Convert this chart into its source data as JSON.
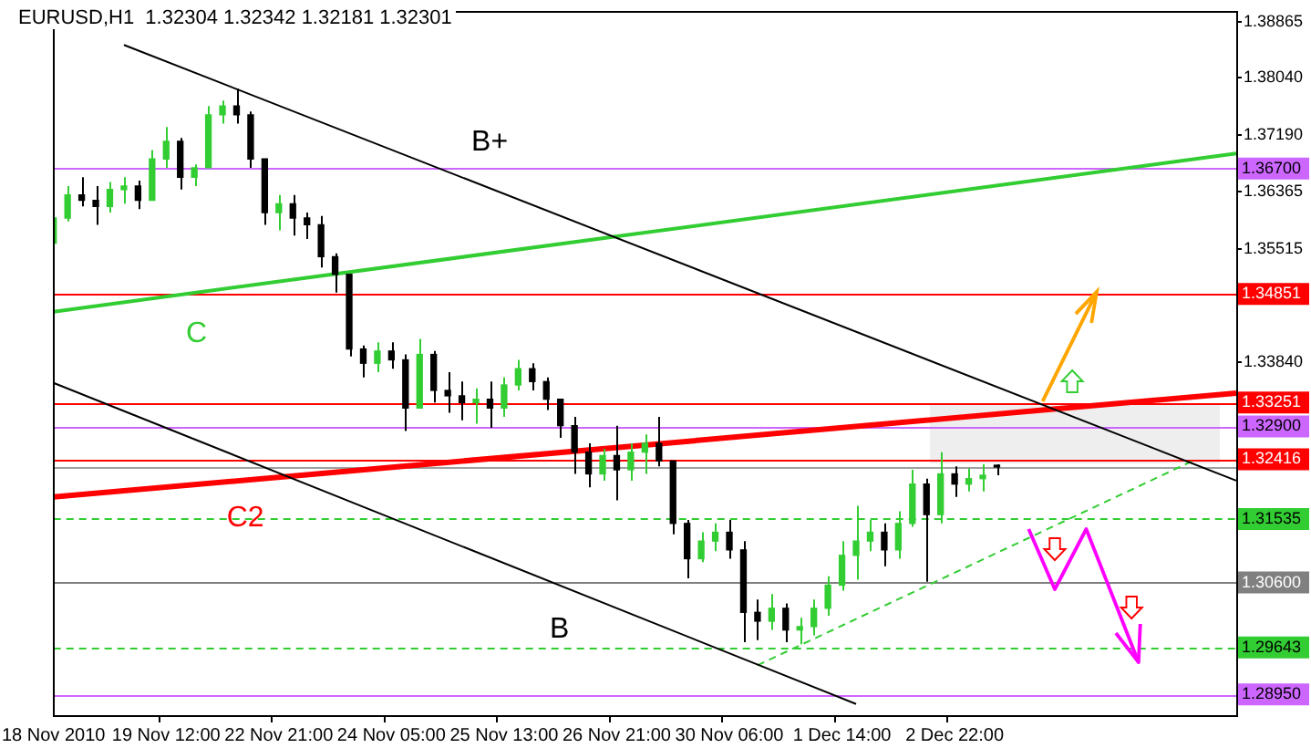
{
  "chart_data": {
    "type": "candlestick",
    "title": "EURUSD,H1  1.32304 1.32342 1.32181 1.32301",
    "legend": false,
    "grid": false,
    "marker": "none",
    "categories": [
      "18 Nov 2010",
      null,
      null,
      null,
      null,
      null,
      null,
      null,
      "19 Nov 12:00",
      null,
      null,
      null,
      null,
      null,
      null,
      null,
      "22 Nov 21:00",
      null,
      null,
      null,
      null,
      null,
      null,
      null,
      "24 Nov 05:00",
      null,
      null,
      null,
      null,
      null,
      null,
      null,
      "25 Nov 13:00",
      null,
      null,
      null,
      null,
      null,
      null,
      null,
      "26 Nov 21:00",
      null,
      null,
      null,
      null,
      null,
      null,
      null,
      "30 Nov 06:00",
      null,
      null,
      null,
      null,
      null,
      null,
      null,
      "1 Dec 14:00",
      null,
      null,
      null,
      null,
      null,
      null,
      null,
      "2 Dec 22:00",
      null,
      null,
      null,
      null,
      null,
      null,
      null,
      null,
      null,
      null,
      null,
      null,
      null,
      null,
      null,
      null,
      null,
      null,
      null,
      null
    ],
    "ohlc": [
      [
        1.356,
        1.3605,
        1.3553,
        1.3597
      ],
      [
        1.3597,
        1.3644,
        1.3592,
        1.3631
      ],
      [
        1.3631,
        1.3657,
        1.3614,
        1.3623
      ],
      [
        1.3623,
        1.3644,
        1.3587,
        1.3614
      ],
      [
        1.3614,
        1.365,
        1.3605,
        1.3639
      ],
      [
        1.3639,
        1.3657,
        1.3618,
        1.3644
      ],
      [
        1.3644,
        1.3652,
        1.361,
        1.3623
      ],
      [
        1.3623,
        1.3697,
        1.3623,
        1.3684
      ],
      [
        1.3684,
        1.3731,
        1.3671,
        1.371
      ],
      [
        1.371,
        1.3715,
        1.3639,
        1.3657
      ],
      [
        1.3657,
        1.3676,
        1.3644,
        1.3671
      ],
      [
        1.3671,
        1.3762,
        1.3671,
        1.3749
      ],
      [
        1.3749,
        1.377,
        1.3736,
        1.3762
      ],
      [
        1.3762,
        1.3788,
        1.3736,
        1.3749
      ],
      [
        1.3749,
        1.3754,
        1.3671,
        1.3684
      ],
      [
        1.3684,
        1.3684,
        1.3587,
        1.3605
      ],
      [
        1.3605,
        1.3631,
        1.3579,
        1.3618
      ],
      [
        1.3618,
        1.3631,
        1.3571,
        1.3597
      ],
      [
        1.3597,
        1.3605,
        1.3566,
        1.3587
      ],
      [
        1.3587,
        1.36,
        1.3524,
        1.354
      ],
      [
        1.354,
        1.3545,
        1.3487,
        1.3514
      ],
      [
        1.3514,
        1.3514,
        1.3393,
        1.3404
      ],
      [
        1.3404,
        1.3409,
        1.3362,
        1.3383
      ],
      [
        1.3383,
        1.3414,
        1.337,
        1.3401
      ],
      [
        1.3401,
        1.3414,
        1.3375,
        1.3388
      ],
      [
        1.3388,
        1.3396,
        1.3283,
        1.3317
      ],
      [
        1.3317,
        1.3419,
        1.3317,
        1.3396
      ],
      [
        1.3396,
        1.3401,
        1.3325,
        1.3343
      ],
      [
        1.3343,
        1.337,
        1.331,
        1.3335
      ],
      [
        1.3335,
        1.3356,
        1.3299,
        1.3325
      ],
      [
        1.3325,
        1.3346,
        1.3294,
        1.333
      ],
      [
        1.333,
        1.3356,
        1.3288,
        1.3317
      ],
      [
        1.3317,
        1.3362,
        1.3304,
        1.3351
      ],
      [
        1.3351,
        1.3388,
        1.3343,
        1.3375
      ],
      [
        1.3375,
        1.3383,
        1.3343,
        1.3356
      ],
      [
        1.3356,
        1.3362,
        1.3314,
        1.333
      ],
      [
        1.333,
        1.333,
        1.3273,
        1.3291
      ],
      [
        1.3291,
        1.3304,
        1.322,
        1.3252
      ],
      [
        1.3252,
        1.3265,
        1.32,
        1.322
      ],
      [
        1.322,
        1.3257,
        1.321,
        1.3247
      ],
      [
        1.3247,
        1.3291,
        1.3181,
        1.3226
      ],
      [
        1.3226,
        1.3265,
        1.321,
        1.3252
      ],
      [
        1.3252,
        1.3278,
        1.322,
        1.3265
      ],
      [
        1.3265,
        1.3304,
        1.3231,
        1.3239
      ],
      [
        1.3239,
        1.3239,
        1.3131,
        1.3147
      ],
      [
        1.3147,
        1.3152,
        1.3066,
        1.3095
      ],
      [
        1.3095,
        1.3134,
        1.309,
        1.3121
      ],
      [
        1.3121,
        1.3147,
        1.3106,
        1.3134
      ],
      [
        1.3134,
        1.3152,
        1.3095,
        1.3108
      ],
      [
        1.3108,
        1.3121,
        1.2972,
        1.3016
      ],
      [
        1.3016,
        1.3035,
        1.2975,
        1.3003
      ],
      [
        1.3003,
        1.3043,
        1.299,
        1.3022
      ],
      [
        1.3022,
        1.3029,
        1.2972,
        1.299
      ],
      [
        1.299,
        1.3008,
        1.2969,
        1.2995
      ],
      [
        1.2995,
        1.3035,
        1.2982,
        1.3022
      ],
      [
        1.3022,
        1.3069,
        1.3011,
        1.3056
      ],
      [
        1.3056,
        1.3121,
        1.3048,
        1.31
      ],
      [
        1.31,
        1.3173,
        1.3064,
        1.3121
      ],
      [
        1.3121,
        1.3152,
        1.3106,
        1.3134
      ],
      [
        1.3134,
        1.3147,
        1.3084,
        1.3108
      ],
      [
        1.3108,
        1.3165,
        1.3095,
        1.3147
      ],
      [
        1.3147,
        1.3226,
        1.3142,
        1.3205
      ],
      [
        1.3205,
        1.3213,
        1.3061,
        1.316
      ],
      [
        1.316,
        1.3252,
        1.3147,
        1.322
      ],
      [
        1.322,
        1.3231,
        1.3186,
        1.3205
      ],
      [
        1.3205,
        1.3228,
        1.3194,
        1.3213
      ],
      [
        1.3213,
        1.3234,
        1.3194,
        1.3218
      ],
      [
        1.32304,
        1.32342,
        1.32181,
        1.32301
      ],
      null,
      null,
      null,
      null,
      null,
      null,
      null,
      null,
      null,
      null,
      null,
      null,
      null,
      null,
      null,
      null,
      null
    ],
    "colors": [
      "#32cd32",
      "#32cd32",
      "#000000",
      "#000000",
      "#32cd32",
      "#32cd32",
      "#000000",
      "#32cd32",
      "#32cd32",
      "#000000",
      "#32cd32",
      "#32cd32",
      "#32cd32",
      "#000000",
      "#000000",
      "#000000",
      "#32cd32",
      "#000000",
      "#000000",
      "#000000",
      "#000000",
      "#000000",
      "#000000",
      "#32cd32",
      "#000000",
      "#000000",
      "#32cd32",
      "#000000",
      "#000000",
      "#000000",
      "#32cd32",
      "#000000",
      "#32cd32",
      "#32cd32",
      "#000000",
      "#000000",
      "#000000",
      "#000000",
      "#000000",
      "#32cd32",
      "#000000",
      "#32cd32",
      "#32cd32",
      "#000000",
      "#000000",
      "#000000",
      "#32cd32",
      "#32cd32",
      "#000000",
      "#000000",
      "#000000",
      "#32cd32",
      "#000000",
      "#32cd32",
      "#32cd32",
      "#32cd32",
      "#32cd32",
      "#32cd32",
      "#32cd32",
      "#000000",
      "#32cd32",
      "#32cd32",
      "#000000",
      "#32cd32",
      "#000000",
      "#32cd32",
      "#32cd32",
      "#000000",
      null,
      null,
      null,
      null,
      null,
      null,
      null,
      null,
      null,
      null,
      null,
      null,
      null,
      null,
      null,
      null,
      null
    ],
    "series": [
      {
        "type": "line",
        "color": "#000000",
        "line_style": "solid",
        "values": [
          null,
          null,
          null,
          null,
          null,
          1.3852,
          null,
          null,
          null,
          null,
          null,
          null,
          null,
          null,
          null,
          null,
          null,
          null,
          null,
          null,
          null,
          null,
          null,
          null,
          null,
          null,
          null,
          null,
          null,
          null,
          null,
          null,
          null,
          null,
          null,
          null,
          null,
          null,
          null,
          null,
          null,
          null,
          null,
          null,
          null,
          null,
          null,
          null,
          null,
          null,
          null,
          null,
          null,
          null,
          null,
          null,
          null,
          null,
          null,
          null,
          null,
          null,
          null,
          null,
          null,
          null,
          null,
          null,
          null,
          null,
          null,
          null,
          null,
          null,
          null,
          null,
          null,
          null,
          null,
          null,
          null,
          null,
          null,
          null,
          1.321
        ]
      },
      {
        "type": "line",
        "color": "#000000",
        "line_style": "solid",
        "values": [
          1.3354,
          null,
          null,
          null,
          null,
          null,
          null,
          null,
          null,
          null,
          null,
          null,
          null,
          null,
          null,
          null,
          null,
          null,
          null,
          null,
          null,
          null,
          null,
          null,
          null,
          null,
          null,
          null,
          null,
          null,
          null,
          null,
          null,
          null,
          null,
          null,
          null,
          null,
          null,
          null,
          null,
          null,
          null,
          null,
          null,
          null,
          null,
          null,
          null,
          null,
          null,
          null,
          null,
          null,
          null,
          null,
          null,
          1.2881,
          null,
          null,
          null,
          null,
          null,
          null,
          null,
          null,
          null,
          null,
          null,
          null,
          null,
          null,
          null,
          null,
          null,
          null,
          null,
          null,
          null,
          null,
          null,
          null,
          null,
          null,
          null
        ]
      },
      {
        "type": "line",
        "color": "#32cd32",
        "line_style": "solid",
        "values": [
          1.3459,
          null,
          null,
          null,
          null,
          null,
          null,
          null,
          null,
          null,
          null,
          null,
          null,
          null,
          null,
          null,
          null,
          null,
          null,
          null,
          null,
          null,
          null,
          null,
          null,
          null,
          null,
          null,
          null,
          null,
          null,
          null,
          null,
          null,
          null,
          null,
          null,
          null,
          null,
          null,
          null,
          null,
          null,
          null,
          null,
          null,
          null,
          null,
          null,
          null,
          null,
          null,
          null,
          null,
          null,
          null,
          null,
          null,
          null,
          null,
          null,
          null,
          null,
          null,
          null,
          null,
          null,
          null,
          null,
          null,
          null,
          null,
          null,
          null,
          null,
          null,
          null,
          null,
          null,
          null,
          null,
          null,
          null,
          null,
          1.3692
        ]
      },
      {
        "type": "line",
        "color": "#ff0000",
        "line_style": "solid",
        "values": [
          1.3186,
          null,
          null,
          null,
          null,
          null,
          null,
          null,
          null,
          null,
          null,
          null,
          null,
          null,
          null,
          null,
          null,
          null,
          null,
          null,
          null,
          null,
          null,
          null,
          null,
          null,
          null,
          null,
          null,
          null,
          null,
          null,
          null,
          null,
          null,
          null,
          null,
          null,
          null,
          null,
          null,
          null,
          null,
          null,
          null,
          null,
          null,
          null,
          null,
          null,
          null,
          null,
          null,
          null,
          null,
          null,
          null,
          null,
          null,
          null,
          null,
          null,
          null,
          null,
          null,
          null,
          null,
          null,
          null,
          null,
          null,
          null,
          null,
          null,
          null,
          null,
          null,
          null,
          null,
          null,
          null,
          null,
          null,
          null,
          1.3339
        ]
      },
      {
        "type": "line",
        "color": "#32cd32",
        "line_style": "dashed",
        "values": [
          null,
          null,
          null,
          null,
          null,
          null,
          null,
          null,
          null,
          null,
          null,
          null,
          null,
          null,
          null,
          null,
          null,
          null,
          null,
          null,
          null,
          null,
          null,
          null,
          null,
          null,
          null,
          null,
          null,
          null,
          null,
          null,
          null,
          null,
          null,
          null,
          null,
          null,
          null,
          null,
          null,
          null,
          null,
          null,
          null,
          null,
          null,
          null,
          null,
          null,
          1.2938,
          null,
          null,
          null,
          null,
          null,
          null,
          null,
          null,
          null,
          null,
          null,
          null,
          null,
          null,
          null,
          null,
          null,
          null,
          null,
          null,
          null,
          null,
          null,
          null,
          null,
          null,
          null,
          null,
          null,
          null,
          1.324,
          null,
          null,
          null
        ]
      }
    ],
    "ylim": [
      1.28645,
      1.3901
    ],
    "yticks": [
      1.38865,
      {
        "value": 1.3804,
        "label": "1.38040"
      },
      {
        "value": 1.3719,
        "label": "1.37190"
      },
      1.36365,
      1.35515,
      {
        "value": 1.3384,
        "label": "1.33840"
      }
    ],
    "ref_lines": [
      {
        "axis": "y",
        "value": 1.367,
        "label": "1.36700",
        "color": "#cc66ff"
      },
      {
        "axis": "y",
        "value": 1.34851,
        "label": "1.34851",
        "color": "#ff0000"
      },
      {
        "axis": "y",
        "value": 1.33251,
        "label": "1.33251",
        "color": "#ff0000"
      },
      {
        "axis": "y",
        "value": 1.329,
        "label": "1.32900",
        "color": "#cc66ff"
      },
      {
        "axis": "y",
        "value": 1.32416,
        "label": "1.32416",
        "color": "#ff0000"
      },
      {
        "axis": "y",
        "value": 1.32301,
        "color": "#a0a0a0"
      },
      {
        "axis": "y",
        "value": 1.31535,
        "label": "1.31535",
        "color": "#32cd32",
        "line_style": "dashed"
      },
      {
        "axis": "y",
        "value": 1.306,
        "label": "1.30600",
        "color": "#808080"
      },
      {
        "axis": "y",
        "value": 1.29643,
        "label": "1.29643",
        "color": "#32cd32",
        "line_style": "dashed"
      },
      {
        "axis": "y",
        "value": 1.2895,
        "label": "1.28950",
        "color": "#cc66ff"
      }
    ],
    "annotations": [
      "B+",
      "C",
      "C2",
      "B"
    ]
  }
}
